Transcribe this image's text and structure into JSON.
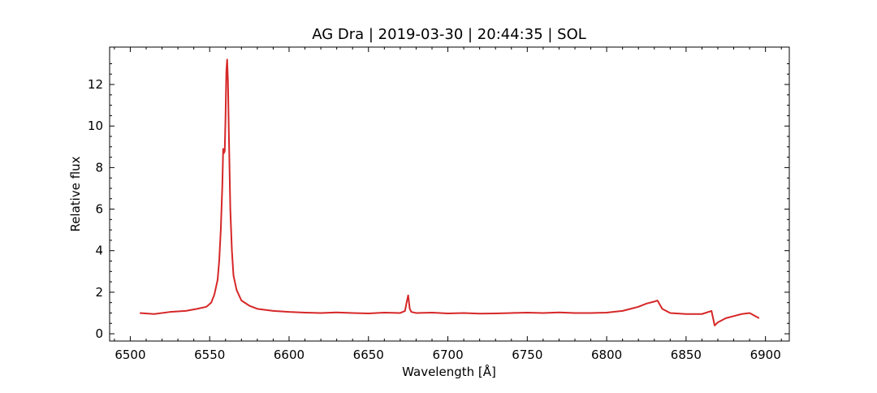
{
  "chart_data": {
    "type": "line",
    "title": "AG Dra | 2019-03-30 | 20:44:35 | SOL",
    "xlabel": "Wavelength [Å]",
    "ylabel": "Relative flux",
    "xlim": [
      6487,
      6915
    ],
    "ylim": [
      -0.35,
      13.8
    ],
    "x_ticks": [
      6500,
      6550,
      6600,
      6650,
      6700,
      6750,
      6800,
      6850,
      6900
    ],
    "x_tick_labels": [
      "6500",
      "6550",
      "6600",
      "6650",
      "6700",
      "6750",
      "6800",
      "6850",
      "6900"
    ],
    "y_ticks": [
      0,
      2,
      4,
      6,
      8,
      10,
      12
    ],
    "y_tick_labels": [
      "0",
      "2",
      "4",
      "6",
      "8",
      "10",
      "12"
    ],
    "grid": false,
    "line_color": "#d62728",
    "series": [
      {
        "x": [
          6506,
          6515,
          6525,
          6535,
          6542,
          6548,
          6551,
          6553,
          6555,
          6556,
          6557,
          6558,
          6558.5,
          6559,
          6559.5,
          6560,
          6560.5,
          6561,
          6561.5,
          6562,
          6563,
          6564,
          6565,
          6567,
          6570,
          6575,
          6580,
          6590,
          6600,
          6610,
          6620,
          6630,
          6640,
          6650,
          6660,
          6670,
          6673,
          6674,
          6675,
          6676,
          6677,
          6680,
          6690,
          6700,
          6710,
          6720,
          6730,
          6740,
          6750,
          6760,
          6770,
          6780,
          6790,
          6800,
          6810,
          6815,
          6820,
          6825,
          6830,
          6832,
          6835,
          6840,
          6850,
          6860,
          6866,
          6868,
          6870,
          6875,
          6880,
          6885,
          6890,
          6896
        ],
        "y": [
          1.0,
          0.95,
          1.05,
          1.1,
          1.2,
          1.3,
          1.5,
          1.9,
          2.6,
          3.5,
          5.0,
          7.2,
          8.9,
          8.7,
          8.8,
          10.5,
          12.6,
          13.2,
          12.2,
          10.0,
          6.0,
          4.0,
          2.8,
          2.1,
          1.6,
          1.35,
          1.2,
          1.1,
          1.05,
          1.02,
          1.0,
          1.03,
          1.0,
          0.98,
          1.02,
          1.0,
          1.1,
          1.5,
          1.85,
          1.2,
          1.05,
          1.0,
          1.02,
          0.98,
          1.0,
          0.97,
          0.98,
          1.0,
          1.02,
          1.0,
          1.03,
          1.0,
          1.0,
          1.02,
          1.1,
          1.2,
          1.3,
          1.45,
          1.55,
          1.6,
          1.2,
          1.0,
          0.95,
          0.95,
          1.1,
          0.4,
          0.55,
          0.75,
          0.85,
          0.95,
          1.0,
          0.75
        ]
      }
    ]
  }
}
